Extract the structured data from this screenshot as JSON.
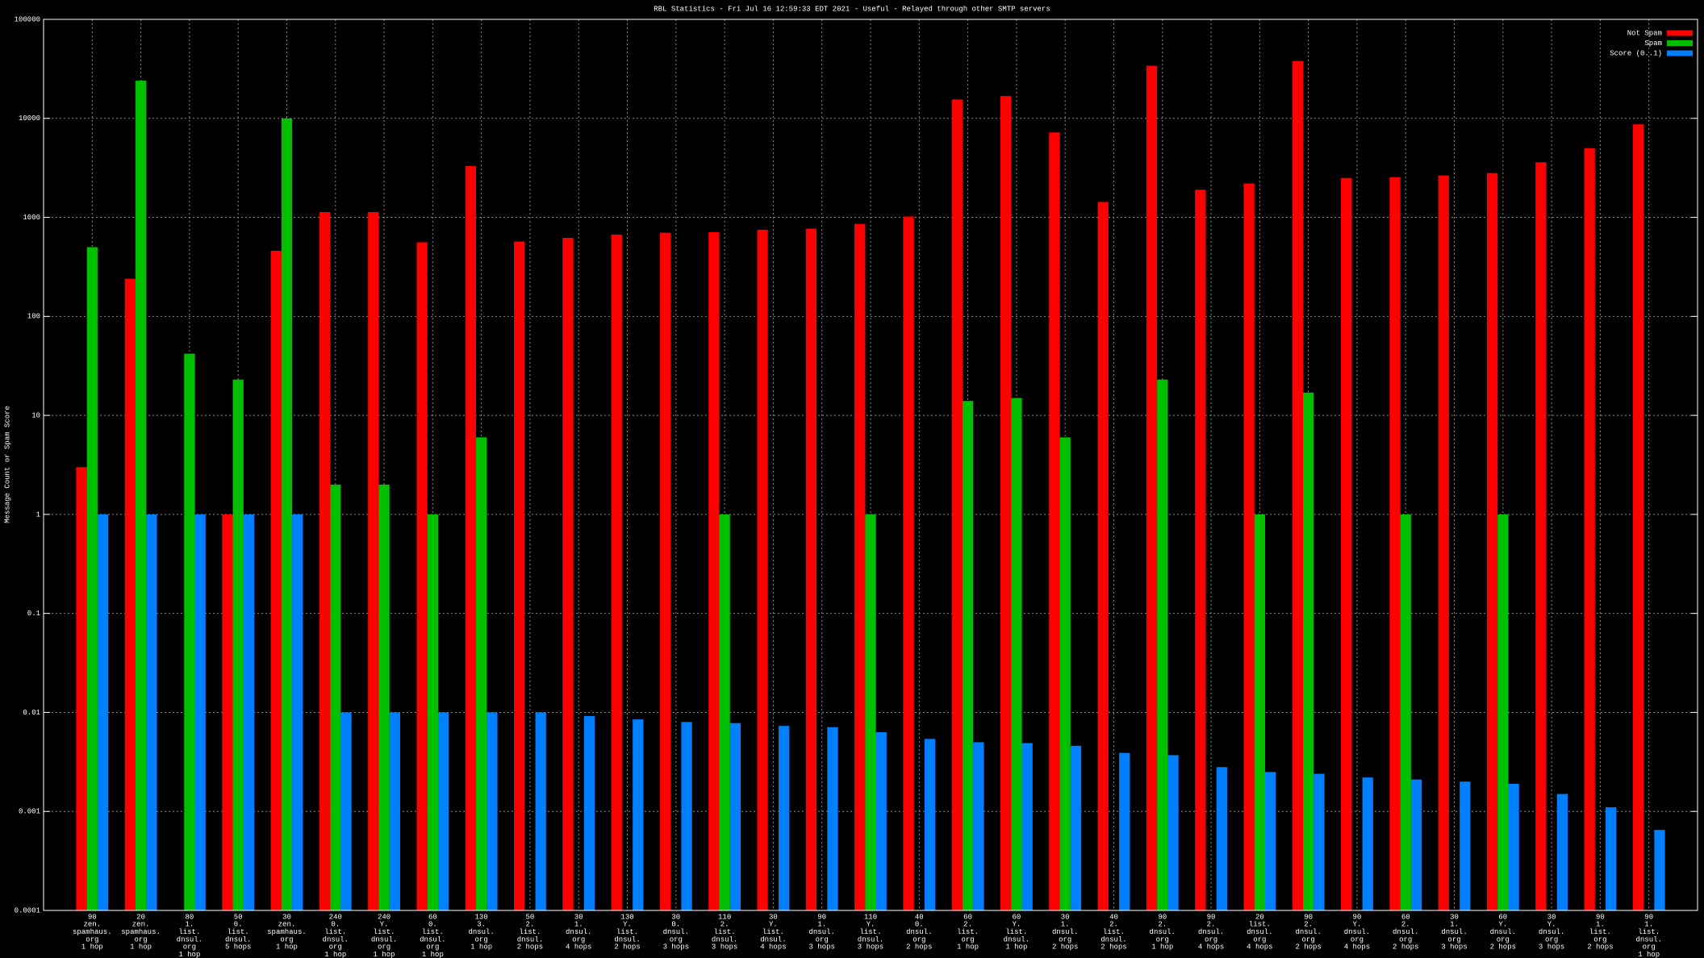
{
  "chart_data": {
    "type": "bar",
    "title": "RBL Statistics - Fri Jul 16 12:59:33 EDT 2021 - Useful - Relayed through other SMTP servers",
    "y_label": "Message Count or Spam Score",
    "log": true,
    "grid": true,
    "legend": "top-right",
    "ylim": [
      0.0001,
      100000
    ],
    "yticks": [
      0.0001,
      0.001,
      0.01,
      0.1,
      1,
      10,
      100,
      1000,
      10000,
      100000
    ],
    "categories": [
      [
        "90",
        "zen.",
        "spamhaus.",
        "org",
        "1 hop"
      ],
      [
        "20",
        "zen.",
        "spamhaus.",
        "org",
        "1 hop"
      ],
      [
        "80",
        "1.",
        "list.",
        "dnsul.",
        "org",
        "1 hop"
      ],
      [
        "50",
        "0.",
        "list.",
        "dnsul.",
        "5 hops"
      ],
      [
        "30",
        "zen.",
        "spamhaus.",
        "org",
        "1 hop"
      ],
      [
        "240",
        "0.",
        "list.",
        "dnsul.",
        "org",
        "1 hop"
      ],
      [
        "240",
        "Y.",
        "list.",
        "dnsul.",
        "org",
        "1 hop"
      ],
      [
        "60",
        "0.",
        "list.",
        "dnsul.",
        "org",
        "1 hop"
      ],
      [
        "130",
        "3.",
        "dnsul.",
        "org",
        "1 hop"
      ],
      [
        "50",
        "2.",
        "list.",
        "dnsul.",
        "2 hops"
      ],
      [
        "30",
        "1.",
        "dnsul.",
        "org",
        "4 hops"
      ],
      [
        "130",
        "Y.",
        "list.",
        "dnsul.",
        "2 hops"
      ],
      [
        "30",
        "0.",
        "dnsul.",
        "org",
        "3 hops"
      ],
      [
        "110",
        "2.",
        "list.",
        "dnsul.",
        "3 hops"
      ],
      [
        "30",
        "Y.",
        "list.",
        "dnsul.",
        "4 hops"
      ],
      [
        "90",
        "1.",
        "dnsul.",
        "org",
        "3 hops"
      ],
      [
        "110",
        "Y.",
        "list.",
        "dnsul.",
        "3 hops"
      ],
      [
        "40",
        "0.",
        "dnsul.",
        "org",
        "2 hops"
      ],
      [
        "60",
        "2.",
        "list.",
        "org",
        "1 hop"
      ],
      [
        "60",
        "Y.",
        "list.",
        "dnsul.",
        "1 hop"
      ],
      [
        "30",
        "1.",
        "dnsul.",
        "org",
        "2 hops"
      ],
      [
        "40",
        "2.",
        "list.",
        "dnsul.",
        "2 hops"
      ],
      [
        "90",
        "2.",
        "dnsul.",
        "org",
        "1 hop"
      ],
      [
        "90",
        "2.",
        "dnsul.",
        "org",
        "4 hops"
      ],
      [
        "20",
        "list.",
        "dnsul.",
        "org",
        "4 hops"
      ],
      [
        "90",
        "2.",
        "dnsul.",
        "org",
        "2 hops"
      ],
      [
        "90",
        "Y.",
        "dnsul.",
        "org",
        "4 hops"
      ],
      [
        "60",
        "2.",
        "dnsul.",
        "org",
        "2 hops"
      ],
      [
        "30",
        "1.",
        "dnsul.",
        "org",
        "3 hops"
      ],
      [
        "60",
        "Y.",
        "dnsul.",
        "org",
        "2 hops"
      ],
      [
        "30",
        "Y.",
        "dnsul.",
        "org",
        "3 hops"
      ],
      [
        "90",
        "1.",
        "list.",
        "org",
        "2 hops"
      ],
      [
        "90",
        "1.",
        "list.",
        "dnsul.",
        "org",
        "1 hop"
      ]
    ],
    "series": [
      {
        "name": "Not Spam",
        "color": "#ff0000",
        "values": [
          3,
          240,
          null,
          1,
          460,
          1130,
          1130,
          560,
          3300,
          570,
          620,
          670,
          700,
          710,
          750,
          770,
          860,
          1020,
          15500,
          16800,
          7200,
          1430,
          34000,
          1900,
          2200,
          38000,
          2500,
          2550,
          2650,
          2800,
          3600,
          5000,
          8700
        ]
      },
      {
        "name": "Spam",
        "color": "#00c000",
        "values": [
          500,
          24000,
          42,
          23,
          10000,
          2,
          2,
          1,
          6,
          null,
          null,
          null,
          null,
          1,
          null,
          null,
          1,
          null,
          14,
          15,
          6,
          null,
          23,
          null,
          1,
          17,
          null,
          1,
          null,
          1,
          null,
          null,
          null
        ]
      },
      {
        "name": "Score (0..1)",
        "color": "#0080ff",
        "values": [
          1,
          1,
          1,
          1,
          1,
          0.01,
          0.01,
          0.01,
          0.01,
          0.01,
          0.0092,
          0.0085,
          0.008,
          0.0078,
          0.0073,
          0.0071,
          0.0063,
          0.0054,
          0.005,
          0.0049,
          0.0046,
          0.0039,
          0.0037,
          0.0028,
          0.0025,
          0.0024,
          0.0022,
          0.0021,
          0.002,
          0.0019,
          0.0015,
          0.0011,
          0.00065
        ]
      }
    ]
  }
}
